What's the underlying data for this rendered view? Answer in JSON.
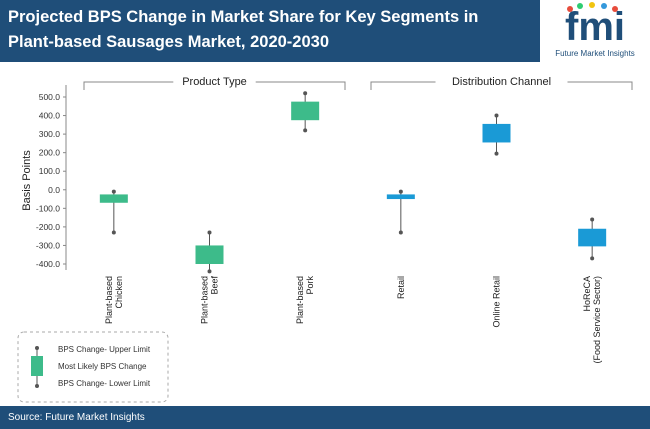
{
  "header": {
    "title_line1": "Projected BPS Change in Market Share for Key Segments in",
    "title_line2": "Plant-based Sausages Market, 2020-2030"
  },
  "logo": {
    "wordmark": "fmi",
    "tagline": "Future Market Insights",
    "colors": [
      "#1f4e79",
      "#e74c3c",
      "#2ecc71",
      "#f1c40f",
      "#3498db"
    ]
  },
  "footer": {
    "source": "Source: Future Market Insights"
  },
  "colors": {
    "header_bg": "#1f4e79",
    "product_box": "#3dbb8a",
    "channel_box": "#1a9ad6",
    "whisker": "#555555"
  },
  "legend": {
    "upper_label": "BPS Change- Upper Limit",
    "mid_label": "Most Likely BPS Change",
    "lower_label": "BPS Change- Lower Limit"
  },
  "chart_data": {
    "type": "box",
    "title": "Projected BPS Change in Market Share for Key Segments in Plant-based Sausages Market, 2020-2030",
    "ylabel": "Basis Points",
    "ylim": [
      -400,
      500
    ],
    "yticks": [
      500,
      400,
      300,
      200,
      100,
      0,
      -100,
      -200,
      -300,
      -400
    ],
    "ytick_labels": [
      "500.0",
      "400.0",
      "300.0",
      "200.0",
      "100.0",
      "0.0",
      "-100.0",
      "-200.0",
      "-300.0",
      "-400.0"
    ],
    "groups": [
      {
        "name": "Product Type",
        "start": 0,
        "end": 2
      },
      {
        "name": "Distribution Channel",
        "start": 3,
        "end": 5
      }
    ],
    "categories": [
      {
        "label": "Plant-based\nChicken",
        "upper": -10,
        "box_high": -25,
        "box_low": -70,
        "lower": -230,
        "group": "Product Type"
      },
      {
        "label": "Plant-based\nBeef",
        "upper": -230,
        "box_high": -300,
        "box_low": -400,
        "lower": -440,
        "group": "Product Type"
      },
      {
        "label": "Plant-based\nPork",
        "upper": 520,
        "box_high": 475,
        "box_low": 375,
        "lower": 320,
        "group": "Product Type"
      },
      {
        "label": "Retail",
        "upper": -10,
        "box_high": -25,
        "box_low": -50,
        "lower": -230,
        "group": "Distribution Channel"
      },
      {
        "label": "Online Retail",
        "upper": 400,
        "box_high": 355,
        "box_low": 255,
        "lower": 195,
        "group": "Distribution Channel"
      },
      {
        "label": "HoReCA\n(Food Service Sector)",
        "upper": -160,
        "box_high": -210,
        "box_low": -305,
        "lower": -370,
        "group": "Distribution Channel"
      }
    ]
  }
}
